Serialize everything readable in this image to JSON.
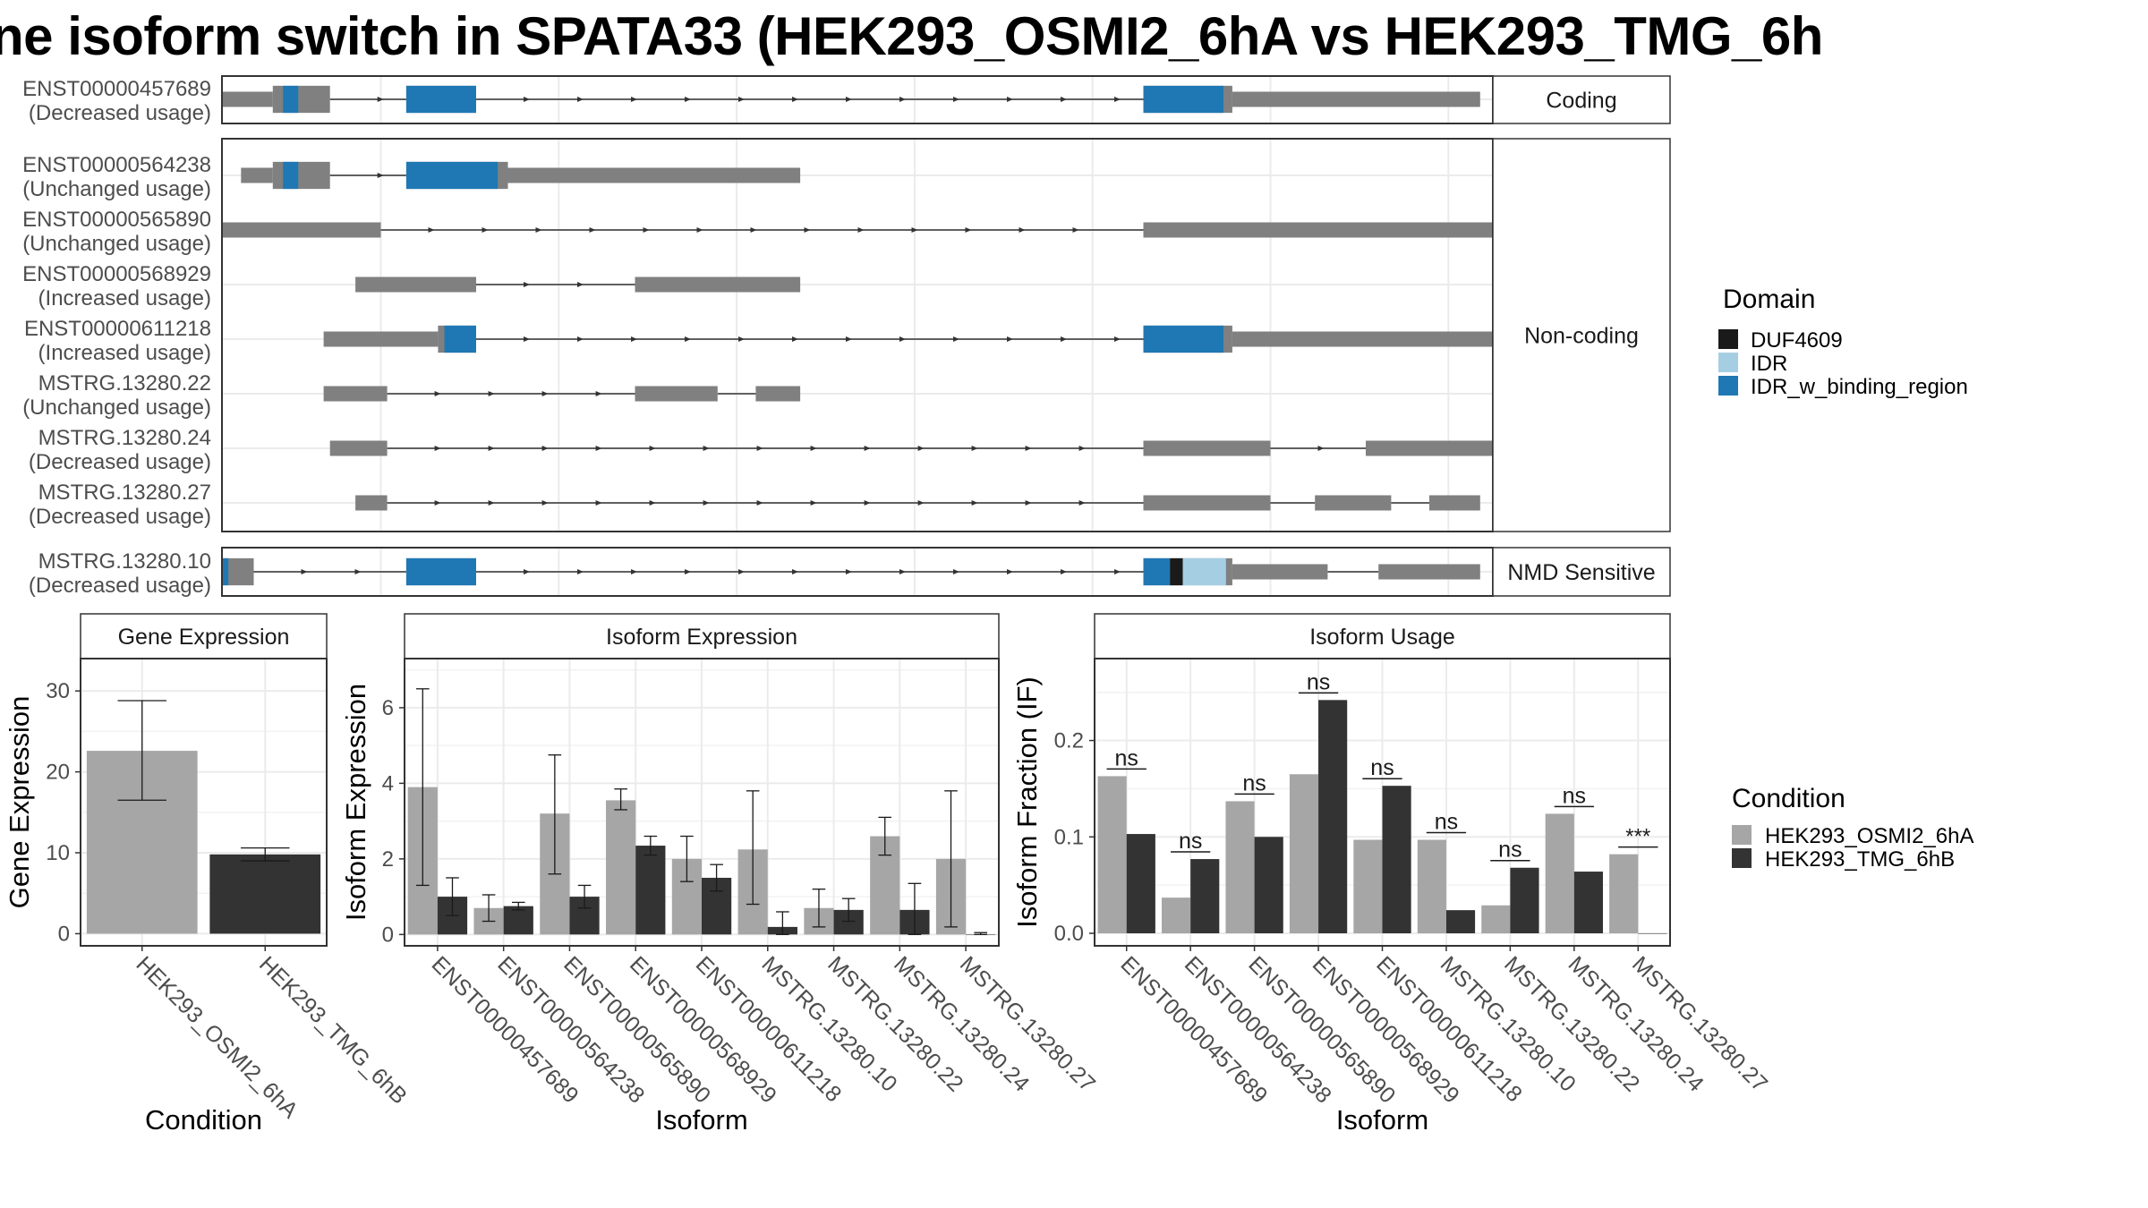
{
  "title": "ne isoform switch in SPATA33 (HEK293_OSMI2_6hA vs HEK293_TMG_6h",
  "colors": {
    "exon": "#808080",
    "DUF4609": "#1a1a1a",
    "IDR": "#a6cee3",
    "IDR_w_binding_region": "#1f78b4",
    "cond1": "#a6a6a6",
    "cond2": "#333333",
    "grid": "#ebebeb",
    "strip": "#ffffff"
  },
  "chart_data": [
    {
      "type": "gene-structure",
      "panels": [
        "Coding",
        "Non-coding",
        "NMD Sensitive"
      ],
      "x_range": [
        0,
        100
      ],
      "legend": {
        "title": "Domain",
        "placement": "right",
        "entries": [
          {
            "label": "DUF4609",
            "color": "#1a1a1a"
          },
          {
            "label": "IDR",
            "color": "#a6cee3"
          },
          {
            "label": "IDR_w_binding_region",
            "color": "#1f78b4"
          }
        ]
      },
      "transcripts": [
        {
          "panel": "Coding",
          "id": "ENST00000457689",
          "usage": "(Decreased usage)",
          "exons": [
            [
              0,
              4,
              0.45
            ],
            [
              4,
              8.5,
              0.8
            ],
            [
              14.5,
              20,
              0.8
            ],
            [
              72.5,
              79.5,
              0.8
            ],
            [
              79.5,
              99,
              0.45
            ]
          ],
          "domains": [
            [
              4.8,
              6,
              "IDR_w_binding_region"
            ],
            [
              14.5,
              20,
              "IDR_w_binding_region"
            ],
            [
              72.5,
              78.8,
              "IDR_w_binding_region"
            ]
          ]
        },
        {
          "panel": "Non-coding",
          "id": "ENST00000564238",
          "usage": "(Unchanged usage)",
          "exons": [
            [
              1.5,
              4,
              0.45
            ],
            [
              4,
              8.5,
              0.8
            ],
            [
              14.5,
              22.5,
              0.8
            ],
            [
              22.5,
              45.5,
              0.45
            ]
          ],
          "domains": [
            [
              4.8,
              6,
              "IDR_w_binding_region"
            ],
            [
              14.5,
              21.7,
              "IDR_w_binding_region"
            ]
          ]
        },
        {
          "panel": "Non-coding",
          "id": "ENST00000565890",
          "usage": "(Unchanged usage)",
          "exons": [
            [
              -1,
              12.5,
              0.45
            ],
            [
              72.5,
              107,
              0.45
            ]
          ],
          "domains": []
        },
        {
          "panel": "Non-coding",
          "id": "ENST00000568929",
          "usage": "(Increased usage)",
          "exons": [
            [
              10.5,
              20,
              0.45
            ],
            [
              32.5,
              45.5,
              0.45
            ]
          ],
          "domains": []
        },
        {
          "panel": "Non-coding",
          "id": "ENST00000611218",
          "usage": "(Increased usage)",
          "exons": [
            [
              8,
              17,
              0.45
            ],
            [
              17,
              20,
              0.8
            ],
            [
              72.5,
              79.5,
              0.8
            ],
            [
              79.5,
              107,
              0.45
            ]
          ],
          "domains": [
            [
              17.5,
              20,
              "IDR_w_binding_region"
            ],
            [
              72.5,
              78.8,
              "IDR_w_binding_region"
            ]
          ]
        },
        {
          "panel": "Non-coding",
          "id": "MSTRG.13280.22",
          "usage": "(Unchanged usage)",
          "exons": [
            [
              8,
              13,
              0.45
            ],
            [
              32.5,
              39,
              0.45
            ],
            [
              42,
              45.5,
              0.45
            ]
          ],
          "domains": []
        },
        {
          "panel": "Non-coding",
          "id": "MSTRG.13280.24",
          "usage": "(Decreased usage)",
          "exons": [
            [
              8.5,
              13,
              0.45
            ],
            [
              72.5,
              82.5,
              0.45
            ],
            [
              90,
              107,
              0.45
            ]
          ],
          "domains": []
        },
        {
          "panel": "Non-coding",
          "id": "MSTRG.13280.27",
          "usage": "(Decreased usage)",
          "exons": [
            [
              10.5,
              13,
              0.45
            ],
            [
              72.5,
              82.5,
              0.45
            ],
            [
              86,
              92,
              0.45
            ],
            [
              95,
              99,
              0.45
            ]
          ],
          "domains": []
        },
        {
          "panel": "NMD Sensitive",
          "id": "MSTRG.13280.10",
          "usage": "(Decreased usage)",
          "exons": [
            [
              -2,
              2.5,
              0.8
            ],
            [
              14.5,
              20,
              0.8
            ],
            [
              72.5,
              79.5,
              0.8
            ],
            [
              79.5,
              87,
              0.45
            ],
            [
              91,
              99,
              0.45
            ]
          ],
          "domains": [
            [
              -1.2,
              0.5,
              "IDR_w_binding_region"
            ],
            [
              14.5,
              20,
              "IDR_w_binding_region"
            ],
            [
              72.5,
              74.6,
              "IDR_w_binding_region"
            ],
            [
              74.6,
              75.6,
              "DUF4609"
            ],
            [
              75.6,
              79,
              "IDR"
            ]
          ]
        }
      ]
    },
    {
      "type": "bar",
      "title": "Gene Expression",
      "xlabel": "Condition",
      "ylabel": "Gene Expression",
      "ylim": [
        -1.5,
        34
      ],
      "yticks": [
        0,
        10,
        20,
        30
      ],
      "categories": [
        "HEK293_OSMI2_6hA",
        "HEK293_TMG_6hB"
      ],
      "values": [
        22.6,
        9.8
      ],
      "errors": [
        [
          16.5,
          28.8
        ],
        [
          9.0,
          10.6
        ]
      ],
      "grid": true
    },
    {
      "type": "bar",
      "title": "Isoform Expression",
      "xlabel": "Isoform",
      "ylabel": "Isoform Expression",
      "ylim": [
        -0.3,
        7.3
      ],
      "yticks": [
        0,
        2,
        4,
        6
      ],
      "categories": [
        "ENST00000457689",
        "ENST00000564238",
        "ENST00000565890",
        "ENST00000568929",
        "ENST00000611218",
        "MSTRG.13280.10",
        "MSTRG.13280.22",
        "MSTRG.13280.24",
        "MSTRG.13280.27"
      ],
      "series": [
        {
          "name": "HEK293_OSMI2_6hA",
          "values": [
            3.9,
            0.7,
            3.2,
            3.55,
            2.0,
            2.25,
            0.7,
            2.6,
            2.0
          ],
          "errors": [
            [
              1.3,
              6.5
            ],
            [
              0.35,
              1.05
            ],
            [
              1.6,
              4.75
            ],
            [
              3.3,
              3.85
            ],
            [
              1.4,
              2.6
            ],
            [
              0.8,
              3.8
            ],
            [
              0.2,
              1.2
            ],
            [
              2.1,
              3.1
            ],
            [
              0.2,
              3.8
            ]
          ]
        },
        {
          "name": "HEK293_TMG_6hB",
          "values": [
            1.0,
            0.75,
            1.0,
            2.35,
            1.5,
            0.2,
            0.65,
            0.65,
            0.0
          ],
          "errors": [
            [
              0.5,
              1.5
            ],
            [
              0.65,
              0.85
            ],
            [
              0.7,
              1.3
            ],
            [
              2.1,
              2.6
            ],
            [
              1.15,
              1.85
            ],
            [
              0.0,
              0.6
            ],
            [
              0.35,
              0.95
            ],
            [
              0.0,
              1.35
            ],
            [
              0.0,
              0.05
            ]
          ]
        }
      ],
      "grid": true
    },
    {
      "type": "bar",
      "title": "Isoform Usage",
      "xlabel": "Isoform",
      "ylabel": "Isoform Fraction (IF)",
      "ylim": [
        -0.013,
        0.285
      ],
      "yticks": [
        0.0,
        0.1,
        0.2
      ],
      "ytick_labels": [
        "0.0",
        "0.1",
        "0.2"
      ],
      "categories": [
        "ENST00000457689",
        "ENST00000564238",
        "ENST00000565890",
        "ENST00000568929",
        "ENST00000611218",
        "MSTRG.13280.10",
        "MSTRG.13280.22",
        "MSTRG.13280.24",
        "MSTRG.13280.27"
      ],
      "series": [
        {
          "name": "HEK293_OSMI2_6hA",
          "values": [
            0.163,
            0.037,
            0.137,
            0.165,
            0.097,
            0.097,
            0.029,
            0.124,
            0.082
          ]
        },
        {
          "name": "HEK293_TMG_6hB",
          "values": [
            0.103,
            0.077,
            0.1,
            0.242,
            0.153,
            0.024,
            0.068,
            0.064,
            0.0
          ]
        }
      ],
      "significance": [
        "ns",
        "ns",
        "ns",
        "ns",
        "ns",
        "ns",
        "ns",
        "ns",
        "***"
      ],
      "legend": {
        "title": "Condition",
        "placement": "right",
        "entries": [
          {
            "label": "HEK293_OSMI2_6hA",
            "color": "#a6a6a6"
          },
          {
            "label": "HEK293_TMG_6hB",
            "color": "#333333"
          }
        ]
      },
      "grid": true
    }
  ]
}
